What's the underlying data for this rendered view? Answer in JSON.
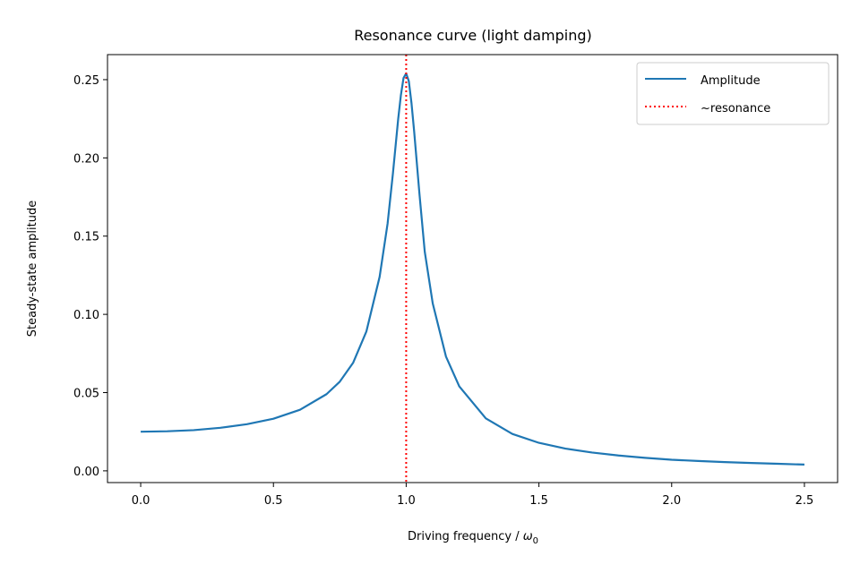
{
  "chart_data": {
    "type": "line",
    "title": "Resonance curve (light damping)",
    "xlabel_main": "Driving frequency / ",
    "xlabel_symbol": "ω",
    "xlabel_subscript": "0",
    "ylabel": "Steady-state amplitude",
    "xlim": [
      -0.125,
      2.625
    ],
    "ylim": [
      -0.0075,
      0.266
    ],
    "x_ticks": [
      0.0,
      0.5,
      1.0,
      1.5,
      2.0,
      2.5
    ],
    "x_tick_labels": [
      "0.0",
      "0.5",
      "1.0",
      "1.5",
      "2.0",
      "2.5"
    ],
    "y_ticks": [
      0.0,
      0.05,
      0.1,
      0.15,
      0.2,
      0.25
    ],
    "y_tick_labels": [
      "0.00",
      "0.05",
      "0.10",
      "0.15",
      "0.20",
      "0.25"
    ],
    "grid": false,
    "legend_position": "top-right",
    "series": [
      {
        "name": "Amplitude",
        "color": "#1f77b4",
        "style": "solid",
        "x": [
          0.0,
          0.1,
          0.2,
          0.3,
          0.4,
          0.5,
          0.6,
          0.7,
          0.75,
          0.8,
          0.85,
          0.9,
          0.93,
          0.95,
          0.97,
          0.98,
          0.99,
          1.0,
          1.01,
          1.02,
          1.03,
          1.05,
          1.07,
          1.1,
          1.15,
          1.2,
          1.3,
          1.4,
          1.5,
          1.6,
          1.7,
          1.8,
          1.9,
          2.0,
          2.1,
          2.2,
          2.3,
          2.4,
          2.5
        ],
        "y": [
          0.025,
          0.0253,
          0.026,
          0.0275,
          0.0298,
          0.0333,
          0.039,
          0.049,
          0.057,
          0.069,
          0.089,
          0.124,
          0.158,
          0.19,
          0.225,
          0.24,
          0.251,
          0.254,
          0.249,
          0.235,
          0.217,
          0.177,
          0.14,
          0.107,
          0.073,
          0.054,
          0.0335,
          0.0236,
          0.0179,
          0.0142,
          0.0117,
          0.0098,
          0.0083,
          0.0071,
          0.0063,
          0.0056,
          0.005,
          0.0045,
          0.004
        ]
      },
      {
        "name": "~resonance",
        "color": "#ff0000",
        "style": "dotted",
        "x_value": 1.0
      }
    ]
  }
}
